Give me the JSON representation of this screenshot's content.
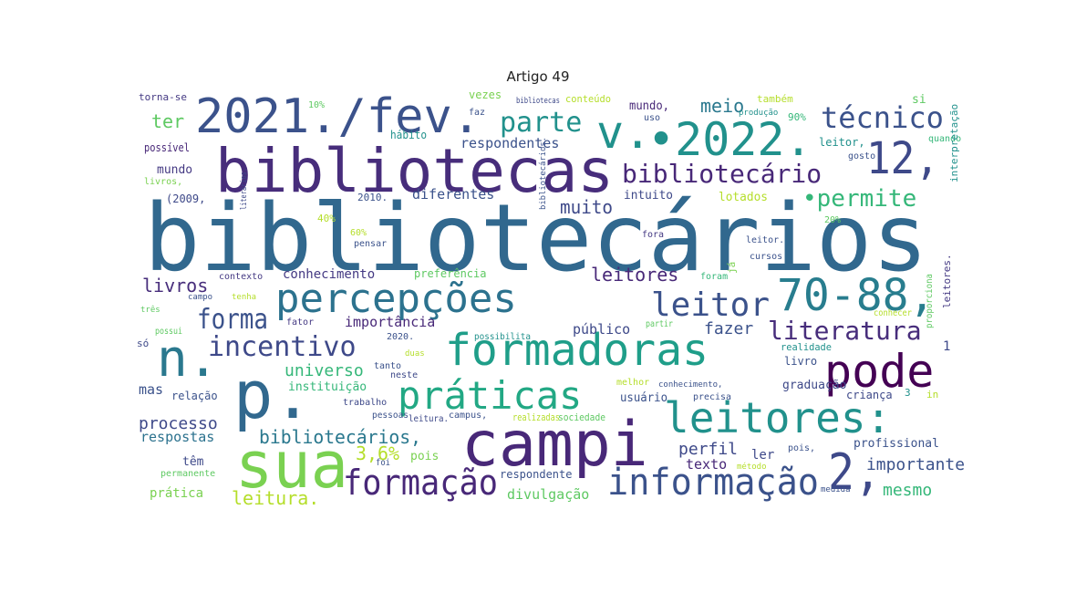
{
  "title": "Artigo 49",
  "words": [
    {
      "t": "bibliotecários",
      "c": "#31688e"
    },
    {
      "t": "bibliotecas",
      "c": "#472d7b"
    },
    {
      "t": "2021./fev.",
      "c": "#3b528b"
    },
    {
      "t": "v.",
      "c": "#21918c"
    },
    {
      "t": "•2022.",
      "c": "#21918c"
    },
    {
      "t": "12,",
      "c": "#3e4989"
    },
    {
      "t": "técnico",
      "c": "#3b528b"
    },
    {
      "t": "parte",
      "c": "#21918c"
    },
    {
      "t": "bibliotecário",
      "c": "#482878"
    },
    {
      "t": "•permite",
      "c": "#35b779"
    },
    {
      "t": "percepções",
      "c": "#2c728e"
    },
    {
      "t": "70-88,",
      "c": "#287d8e"
    },
    {
      "t": "leitor",
      "c": "#3b528b"
    },
    {
      "t": "forma",
      "c": "#3b528b"
    },
    {
      "t": "literatura",
      "c": "#472d7b"
    },
    {
      "t": "n.",
      "c": "#2a788e"
    },
    {
      "t": "p.",
      "c": "#31688e"
    },
    {
      "t": "incentivo",
      "c": "#3e4989"
    },
    {
      "t": "formadoras",
      "c": "#1f9e89"
    },
    {
      "t": "pode",
      "c": "#440154"
    },
    {
      "t": "práticas",
      "c": "#22a884"
    },
    {
      "t": "leitores:",
      "c": "#21918c"
    },
    {
      "t": "sua",
      "c": "#7ad151"
    },
    {
      "t": "campi",
      "c": "#482878"
    },
    {
      "t": "2,",
      "c": "#3e4989"
    },
    {
      "t": "formação",
      "c": "#482878"
    },
    {
      "t": "informação",
      "c": "#3b528b"
    },
    {
      "t": "ter",
      "c": "#5ec962"
    },
    {
      "t": "muito",
      "c": "#3e4989"
    },
    {
      "t": "livros",
      "c": "#472d7b"
    },
    {
      "t": "meio",
      "c": "#2a788e"
    },
    {
      "t": "leitores",
      "c": "#482878"
    },
    {
      "t": "universo",
      "c": "#35b779"
    },
    {
      "t": "fazer",
      "c": "#3b528b"
    },
    {
      "t": "processo",
      "c": "#3e4989"
    },
    {
      "t": "bibliotecários,",
      "c": "#2a788e"
    },
    {
      "t": "perfil",
      "c": "#3e4989"
    },
    {
      "t": "3,6%",
      "c": "#b5de2b"
    },
    {
      "t": "leitura.",
      "c": "#b5de2b"
    },
    {
      "t": "mesmo",
      "c": "#35b779"
    },
    {
      "t": "importante",
      "c": "#3b528b"
    },
    {
      "t": "respondentes",
      "c": "#3b528b"
    },
    {
      "t": "conhecimento",
      "c": "#443983"
    },
    {
      "t": "respostas",
      "c": "#2c728e"
    },
    {
      "t": "diferentes",
      "c": "#3b528b"
    },
    {
      "t": "divulgação",
      "c": "#5ec962"
    },
    {
      "t": "importância",
      "c": "#482878"
    },
    {
      "t": "público",
      "c": "#3e4989"
    },
    {
      "t": "texto",
      "c": "#482878"
    },
    {
      "t": "mas",
      "c": "#3b528b"
    },
    {
      "t": "prática",
      "c": "#7ad151"
    },
    {
      "t": "profissional",
      "c": "#3b528b"
    },
    {
      "t": "mundo",
      "c": "#443983"
    },
    {
      "t": "mundo,",
      "c": "#482878"
    },
    {
      "t": "intuito",
      "c": "#3e4989"
    },
    {
      "t": "instituição",
      "c": "#35b779"
    },
    {
      "t": "graduação",
      "c": "#3e4989"
    },
    {
      "t": "usuário",
      "c": "#3b528b"
    },
    {
      "t": "lotados",
      "c": "#b5de2b"
    },
    {
      "t": "hábito",
      "c": "#21918c"
    },
    {
      "t": "possível",
      "c": "#482878"
    },
    {
      "t": "preferência",
      "c": "#5ec962"
    },
    {
      "t": "têm",
      "c": "#3e4989"
    },
    {
      "t": "pois",
      "c": "#7ad151"
    },
    {
      "t": "ler",
      "c": "#3e4989"
    },
    {
      "t": "relação",
      "c": "#3b528b"
    },
    {
      "t": "criança",
      "c": "#3e4989"
    },
    {
      "t": "livro",
      "c": "#3b528b"
    },
    {
      "t": "respondente",
      "c": "#3b528b"
    },
    {
      "t": "torna-se",
      "c": "#443983"
    },
    {
      "t": "10%",
      "c": "#5ec962"
    },
    {
      "t": "vezes",
      "c": "#7ad151"
    },
    {
      "t": "bibliotecas",
      "c": "#3e4989"
    },
    {
      "t": "conteúdo",
      "c": "#b5de2b"
    },
    {
      "t": "também",
      "c": "#b5de2b"
    },
    {
      "t": "si",
      "c": "#5ec962"
    },
    {
      "t": "uso",
      "c": "#3b528b"
    },
    {
      "t": "produção",
      "c": "#21918c"
    },
    {
      "t": "90%",
      "c": "#35b779"
    },
    {
      "t": "faz",
      "c": "#3b528b"
    },
    {
      "t": "leitor,",
      "c": "#21918c"
    },
    {
      "t": "gosto",
      "c": "#3b528b"
    },
    {
      "t": "quando",
      "c": "#35b779"
    },
    {
      "t": "livros,",
      "c": "#7ad151"
    },
    {
      "t": "(2009,",
      "c": "#3e4989"
    },
    {
      "t": "2010.",
      "c": "#3b528b"
    },
    {
      "t": "literários.",
      "c": "#3e4989"
    },
    {
      "t": "bibliotecários.",
      "c": "#3b528b"
    },
    {
      "t": "interpretação",
      "c": "#21918c"
    },
    {
      "t": "leitores.",
      "c": "#443983"
    },
    {
      "t": "40%",
      "c": "#b5de2b"
    },
    {
      "t": "60%",
      "c": "#b5de2b"
    },
    {
      "t": "20%",
      "c": "#5ec962"
    },
    {
      "t": "pensar",
      "c": "#3b528b"
    },
    {
      "t": "fora",
      "c": "#443983"
    },
    {
      "t": "leitor.",
      "c": "#3b528b"
    },
    {
      "t": "cursos",
      "c": "#3b528b"
    },
    {
      "t": "contexto",
      "c": "#443983"
    },
    {
      "t": "foram",
      "c": "#35b779"
    },
    {
      "t": "já",
      "c": "#7ad151"
    },
    {
      "t": "campo",
      "c": "#3b528b"
    },
    {
      "t": "tenha",
      "c": "#b5de2b"
    },
    {
      "t": "três",
      "c": "#5ec962"
    },
    {
      "t": "fator",
      "c": "#443983"
    },
    {
      "t": "possui",
      "c": "#5ec962"
    },
    {
      "t": "2020.",
      "c": "#3b528b"
    },
    {
      "t": "possibilita",
      "c": "#21918c"
    },
    {
      "t": "partir",
      "c": "#5ec962"
    },
    {
      "t": "conhecer",
      "c": "#b5de2b"
    },
    {
      "t": "realidade",
      "c": "#21918c"
    },
    {
      "t": "proporciona",
      "c": "#5ec962"
    },
    {
      "t": "só",
      "c": "#3e4989"
    },
    {
      "t": "duas",
      "c": "#b5de2b"
    },
    {
      "t": "tanto",
      "c": "#3b528b"
    },
    {
      "t": "neste",
      "c": "#3e4989"
    },
    {
      "t": "melhor",
      "c": "#b5de2b"
    },
    {
      "t": "conhecimento,",
      "c": "#3b528b"
    },
    {
      "t": "precisa",
      "c": "#3b528b"
    },
    {
      "t": "trabalho",
      "c": "#3e4989"
    },
    {
      "t": "pessoas",
      "c": "#3b528b"
    },
    {
      "t": "leitura.",
      "c": "#3e4989"
    },
    {
      "t": "campus,",
      "c": "#3b528b"
    },
    {
      "t": "realizadas",
      "c": "#b5de2b"
    },
    {
      "t": "sociedade",
      "c": "#5ec962"
    },
    {
      "t": "pois,",
      "c": "#3b528b"
    },
    {
      "t": "foi",
      "c": "#3b528b"
    },
    {
      "t": "método",
      "c": "#b5de2b"
    },
    {
      "t": "permanente",
      "c": "#5ec962"
    },
    {
      "t": "medida",
      "c": "#3b528b"
    },
    {
      "t": "1",
      "c": "#3e4989"
    },
    {
      "t": "3",
      "c": "#21918c"
    },
    {
      "t": "in",
      "c": "#b5de2b"
    }
  ]
}
